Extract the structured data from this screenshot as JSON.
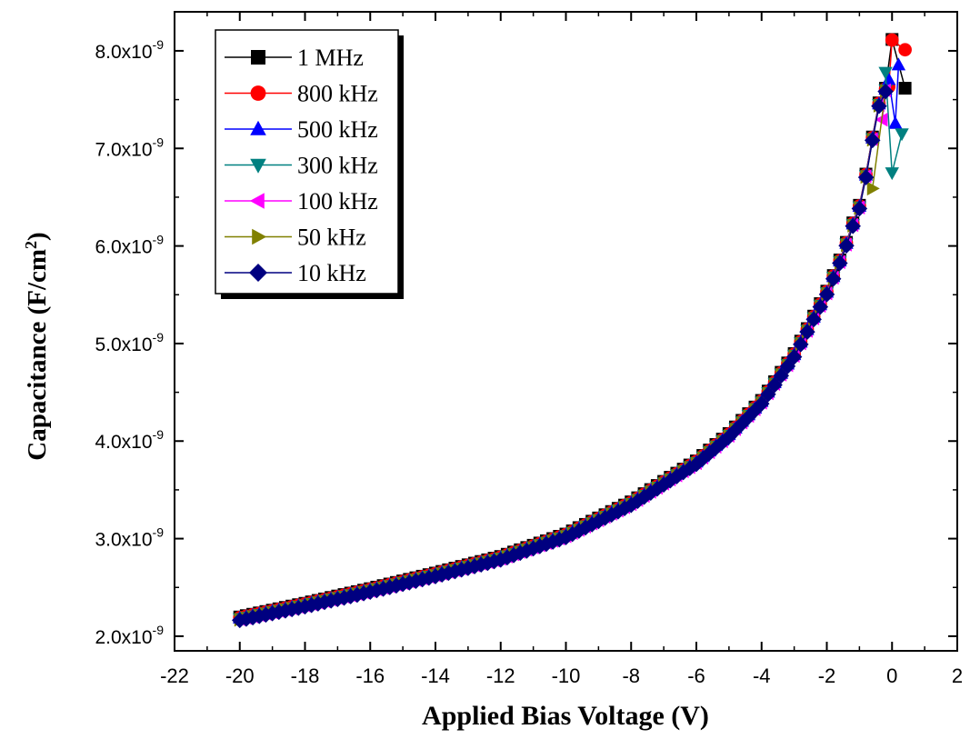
{
  "chart_data": {
    "type": "scatter",
    "xlabel": "Applied Bias Voltage (V)",
    "ylabel": "Capacitance (F/cm²)",
    "xlim": [
      -22,
      2
    ],
    "ylim": [
      1.85e-09,
      8.4e-09
    ],
    "x_ticks": [
      -22,
      -20,
      -18,
      -16,
      -14,
      -12,
      -10,
      -8,
      -6,
      -4,
      -2,
      0,
      2
    ],
    "x_tick_labels": [
      "-22",
      "-20",
      "-18",
      "-16",
      "-14",
      "-12",
      "-10",
      "-8",
      "-6",
      "-4",
      "-2",
      "0",
      "2"
    ],
    "y_ticks": [
      2e-09,
      3e-09,
      4e-09,
      5e-09,
      6e-09,
      7e-09,
      8e-09
    ],
    "y_tick_labels": [
      {
        "mantissa": "2.0x10",
        "exp": "-9"
      },
      {
        "mantissa": "3.0x10",
        "exp": "-9"
      },
      {
        "mantissa": "4.0x10",
        "exp": "-9"
      },
      {
        "mantissa": "5.0x10",
        "exp": "-9"
      },
      {
        "mantissa": "6.0x10",
        "exp": "-9"
      },
      {
        "mantissa": "7.0x10",
        "exp": "-9"
      },
      {
        "mantissa": "8.0x10",
        "exp": "-9"
      }
    ],
    "legend_position": "top-left",
    "grid": false,
    "base_curve": {
      "description": "shared C-V curve for all frequencies from -20 V to 0 V",
      "x": [
        -20,
        -18,
        -16,
        -14,
        -12,
        -10,
        -8,
        -6,
        -5,
        -4,
        -3,
        -2.5,
        -2,
        -1.5,
        -1.2,
        -1,
        -0.8,
        -0.6,
        -0.4,
        -0.2
      ],
      "y": [
        2.18e-09,
        2.32e-09,
        2.47e-09,
        2.63e-09,
        2.8e-09,
        3.03e-09,
        3.36e-09,
        3.78e-09,
        4.06e-09,
        4.4e-09,
        4.88e-09,
        5.2e-09,
        5.52e-09,
        5.92e-09,
        6.22e-09,
        6.4e-09,
        6.72e-09,
        7.1e-09,
        7.45e-09,
        7.6e-09
      ]
    },
    "series": [
      {
        "name": "1 MHz",
        "color": "#000000",
        "marker": "square",
        "tail_x": [
          0,
          0.4
        ],
        "tail_y": [
          8.1e-09,
          7.6e-09
        ]
      },
      {
        "name": "800 kHz",
        "color": "#ff0000",
        "marker": "circle",
        "tail_x": [
          -0.1,
          0,
          0.4
        ],
        "tail_y": [
          7.62e-09,
          8.1e-09,
          8e-09
        ]
      },
      {
        "name": "500 kHz",
        "color": "#0000ff",
        "marker": "triangle-up",
        "tail_x": [
          -0.1,
          0.1,
          0.2
        ],
        "tail_y": [
          7.7e-09,
          7.25e-09,
          7.85e-09
        ]
      },
      {
        "name": "300 kHz",
        "color": "#008080",
        "marker": "triangle-down",
        "tail_x": [
          -0.2,
          0,
          0.3
        ],
        "tail_y": [
          7.78e-09,
          6.75e-09,
          7.15e-09
        ]
      },
      {
        "name": "100 kHz",
        "color": "#ff00ff",
        "marker": "triangle-left",
        "tail_x": [
          -0.3
        ],
        "tail_y": [
          7.3e-09
        ]
      },
      {
        "name": "50 kHz",
        "color": "#808000",
        "marker": "triangle-right",
        "tail_x": [
          -0.6
        ],
        "tail_y": [
          6.6e-09
        ]
      },
      {
        "name": "10 kHz",
        "color": "#000080",
        "marker": "diamond",
        "tail_x": [],
        "tail_y": []
      }
    ]
  }
}
